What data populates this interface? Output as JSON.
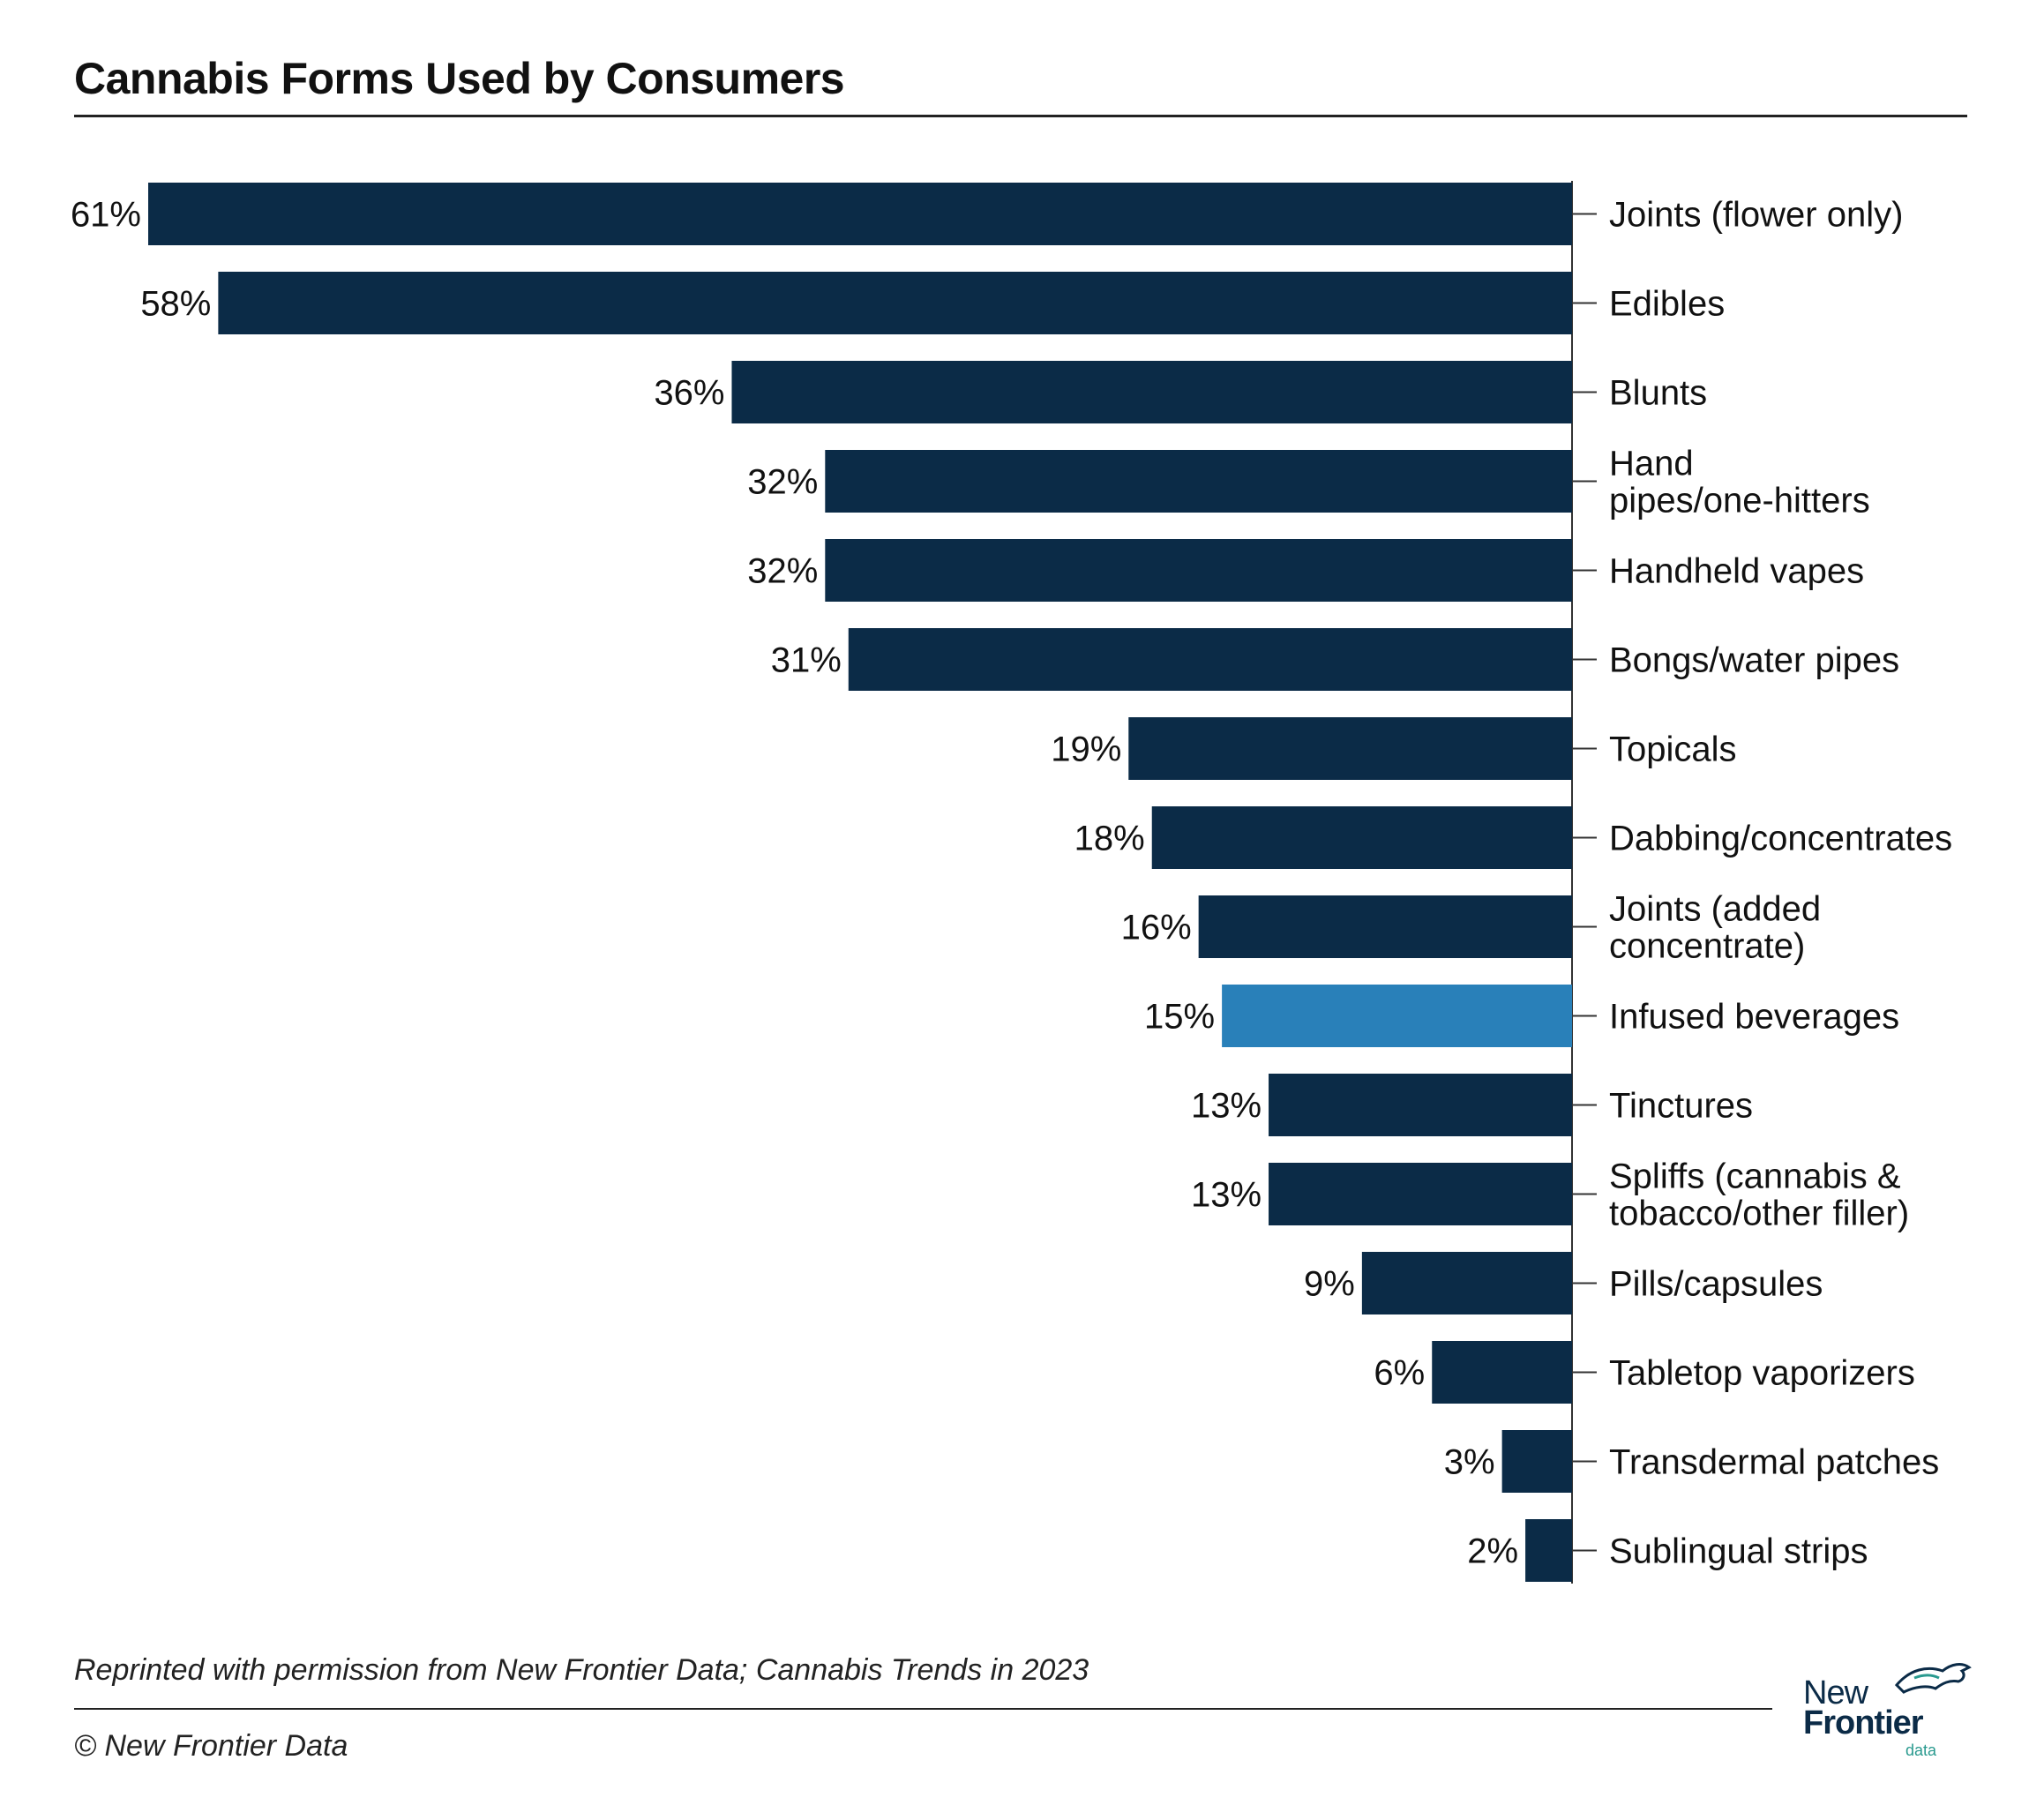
{
  "title": "Cannabis Forms Used by Consumers",
  "source": "Reprinted with permission from New Frontier Data; Cannabis Trends in 2023",
  "copyright": "© New Frontier Data",
  "logo": {
    "line1": "New",
    "line2": "Frontier",
    "line3": "data",
    "icon": "horse-icon"
  },
  "colors": {
    "bar": "#0b2b47",
    "highlight": "#2980b9",
    "axis": "#333333"
  },
  "chart_data": {
    "type": "bar",
    "orientation": "horizontal",
    "bar_direction": "leftward",
    "title": "Cannabis Forms Used by Consumers",
    "xlabel": "",
    "ylabel": "",
    "xlim": [
      0,
      61
    ],
    "grid": false,
    "legend": "none",
    "highlight_category": "Infused beverages",
    "categories": [
      "Joints (flower only)",
      "Edibles",
      "Blunts",
      "Hand pipes/one-hitters",
      "Handheld vapes",
      "Bongs/water pipes",
      "Topicals",
      "Dabbing/concentrates",
      "Joints (added concentrate)",
      "Infused beverages",
      "Tinctures",
      "Spliffs (cannabis & tobacco/other filler)",
      "Pills/capsules",
      "Tabletop vaporizers",
      "Transdermal patches",
      "Sublingual strips"
    ],
    "category_lines": [
      [
        "Joints (flower only)"
      ],
      [
        "Edibles"
      ],
      [
        "Blunts"
      ],
      [
        "Hand",
        "pipes/one-hitters"
      ],
      [
        "Handheld vapes"
      ],
      [
        "Bongs/water pipes"
      ],
      [
        "Topicals"
      ],
      [
        "Dabbing/concentrates"
      ],
      [
        "Joints (added",
        "concentrate)"
      ],
      [
        "Infused beverages"
      ],
      [
        "Tinctures"
      ],
      [
        "Spliffs (cannabis &",
        "tobacco/other filler)"
      ],
      [
        "Pills/capsules"
      ],
      [
        "Tabletop vaporizers"
      ],
      [
        "Transdermal patches"
      ],
      [
        "Sublingual strips"
      ]
    ],
    "values": [
      61,
      58,
      36,
      32,
      32,
      31,
      19,
      18,
      16,
      15,
      13,
      13,
      9,
      6,
      3,
      2
    ],
    "value_labels": [
      "61%",
      "58%",
      "36%",
      "32%",
      "32%",
      "31%",
      "19%",
      "18%",
      "16%",
      "15%",
      "13%",
      "13%",
      "9%",
      "6%",
      "3%",
      "2%"
    ]
  }
}
